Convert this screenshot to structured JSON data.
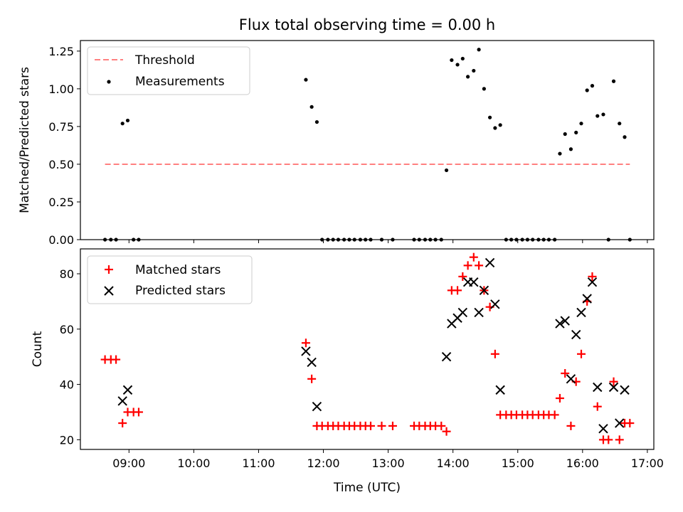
{
  "figure": {
    "title": "Flux total observing time = 0.00 h",
    "xlabel": "Time (UTC)"
  },
  "colors": {
    "threshold": "#ff8080",
    "measurements": "#000000",
    "matched": "#ff0000",
    "predicted": "#000000"
  },
  "chart_data": [
    {
      "type": "scatter",
      "title": "Flux total observing time = 0.00 h",
      "ylabel": "Matched/Predicted stars",
      "xlabel": "",
      "x_unit": "hours UTC",
      "xlim": [
        8.25,
        17.1
      ],
      "ylim": [
        0,
        1.32
      ],
      "yticks": [
        0.0,
        0.25,
        0.5,
        0.75,
        1.0,
        1.25
      ],
      "ytick_labels": [
        "0.00",
        "0.25",
        "0.50",
        "0.75",
        "1.00",
        "1.25"
      ],
      "legend": {
        "placement": "top-left",
        "entries": [
          "Threshold",
          "Measurements"
        ]
      },
      "threshold": {
        "name": "Threshold",
        "y": 0.5,
        "x": [
          8.63,
          16.73
        ]
      },
      "series": [
        {
          "name": "Measurements",
          "marker": "dot",
          "points": [
            [
              8.63,
              0
            ],
            [
              8.72,
              0
            ],
            [
              8.8,
              0
            ],
            [
              8.9,
              0.77
            ],
            [
              8.98,
              0.79
            ],
            [
              9.07,
              0
            ],
            [
              9.15,
              0
            ],
            [
              11.73,
              1.06
            ],
            [
              11.82,
              0.88
            ],
            [
              11.9,
              0.78
            ],
            [
              11.98,
              0
            ],
            [
              12.07,
              0
            ],
            [
              12.15,
              0
            ],
            [
              12.23,
              0
            ],
            [
              12.32,
              0
            ],
            [
              12.4,
              0
            ],
            [
              12.48,
              0
            ],
            [
              12.57,
              0
            ],
            [
              12.65,
              0
            ],
            [
              12.73,
              0
            ],
            [
              12.9,
              0
            ],
            [
              13.07,
              0
            ],
            [
              13.4,
              0
            ],
            [
              13.48,
              0
            ],
            [
              13.57,
              0
            ],
            [
              13.65,
              0
            ],
            [
              13.73,
              0
            ],
            [
              13.82,
              0
            ],
            [
              13.9,
              0.46
            ],
            [
              13.98,
              1.19
            ],
            [
              14.07,
              1.16
            ],
            [
              14.15,
              1.2
            ],
            [
              14.23,
              1.08
            ],
            [
              14.32,
              1.12
            ],
            [
              14.4,
              1.26
            ],
            [
              14.48,
              1.0
            ],
            [
              14.57,
              0.81
            ],
            [
              14.65,
              0.74
            ],
            [
              14.73,
              0.76
            ],
            [
              14.82,
              0
            ],
            [
              14.9,
              0
            ],
            [
              14.98,
              0
            ],
            [
              15.07,
              0
            ],
            [
              15.15,
              0
            ],
            [
              15.23,
              0
            ],
            [
              15.32,
              0
            ],
            [
              15.4,
              0
            ],
            [
              15.48,
              0
            ],
            [
              15.57,
              0
            ],
            [
              15.65,
              0.57
            ],
            [
              15.73,
              0.7
            ],
            [
              15.82,
              0.6
            ],
            [
              15.9,
              0.71
            ],
            [
              15.98,
              0.77
            ],
            [
              16.07,
              0.99
            ],
            [
              16.15,
              1.02
            ],
            [
              16.23,
              0.82
            ],
            [
              16.32,
              0.83
            ],
            [
              16.4,
              0
            ],
            [
              16.48,
              1.05
            ],
            [
              16.57,
              0.77
            ],
            [
              16.65,
              0.68
            ],
            [
              16.73,
              0
            ]
          ]
        }
      ]
    },
    {
      "type": "scatter",
      "title": "",
      "ylabel": "Count",
      "xlabel": "Time (UTC)",
      "x_unit": "hours UTC",
      "xlim": [
        8.25,
        17.1
      ],
      "ylim": [
        16.5,
        89
      ],
      "yticks": [
        20,
        40,
        60,
        80
      ],
      "ytick_labels": [
        "20",
        "40",
        "60",
        "80"
      ],
      "xticks": [
        9,
        10,
        11,
        12,
        13,
        14,
        15,
        16,
        17
      ],
      "xtick_labels": [
        "09:00",
        "10:00",
        "11:00",
        "12:00",
        "13:00",
        "14:00",
        "15:00",
        "16:00",
        "17:00"
      ],
      "legend": {
        "placement": "top-left",
        "entries": [
          "Matched stars",
          "Predicted stars"
        ]
      },
      "series": [
        {
          "name": "Matched stars",
          "marker": "plus",
          "points": [
            [
              8.63,
              49
            ],
            [
              8.72,
              49
            ],
            [
              8.8,
              49
            ],
            [
              8.9,
              26
            ],
            [
              8.98,
              30
            ],
            [
              9.07,
              30
            ],
            [
              9.15,
              30
            ],
            [
              11.73,
              55
            ],
            [
              11.82,
              42
            ],
            [
              11.9,
              25
            ],
            [
              11.98,
              25
            ],
            [
              12.07,
              25
            ],
            [
              12.15,
              25
            ],
            [
              12.23,
              25
            ],
            [
              12.32,
              25
            ],
            [
              12.4,
              25
            ],
            [
              12.48,
              25
            ],
            [
              12.57,
              25
            ],
            [
              12.65,
              25
            ],
            [
              12.73,
              25
            ],
            [
              12.9,
              25
            ],
            [
              13.07,
              25
            ],
            [
              13.4,
              25
            ],
            [
              13.48,
              25
            ],
            [
              13.57,
              25
            ],
            [
              13.65,
              25
            ],
            [
              13.73,
              25
            ],
            [
              13.82,
              25
            ],
            [
              13.9,
              23
            ],
            [
              13.98,
              74
            ],
            [
              14.07,
              74
            ],
            [
              14.15,
              79
            ],
            [
              14.23,
              83
            ],
            [
              14.32,
              86
            ],
            [
              14.4,
              83
            ],
            [
              14.48,
              74
            ],
            [
              14.57,
              68
            ],
            [
              14.65,
              51
            ],
            [
              14.73,
              29
            ],
            [
              14.82,
              29
            ],
            [
              14.9,
              29
            ],
            [
              14.98,
              29
            ],
            [
              15.07,
              29
            ],
            [
              15.15,
              29
            ],
            [
              15.23,
              29
            ],
            [
              15.32,
              29
            ],
            [
              15.4,
              29
            ],
            [
              15.48,
              29
            ],
            [
              15.57,
              29
            ],
            [
              15.65,
              35
            ],
            [
              15.73,
              44
            ],
            [
              15.82,
              25
            ],
            [
              15.9,
              41
            ],
            [
              15.98,
              51
            ],
            [
              16.07,
              70
            ],
            [
              16.15,
              79
            ],
            [
              16.23,
              32
            ],
            [
              16.32,
              20
            ],
            [
              16.4,
              20
            ],
            [
              16.48,
              41
            ],
            [
              16.57,
              20
            ],
            [
              16.65,
              26
            ],
            [
              16.73,
              26
            ]
          ]
        },
        {
          "name": "Predicted stars",
          "marker": "x",
          "points": [
            [
              8.9,
              34
            ],
            [
              8.98,
              38
            ],
            [
              11.73,
              52
            ],
            [
              11.82,
              48
            ],
            [
              11.9,
              32
            ],
            [
              13.9,
              50
            ],
            [
              13.98,
              62
            ],
            [
              14.07,
              64
            ],
            [
              14.15,
              66
            ],
            [
              14.23,
              77
            ],
            [
              14.32,
              77
            ],
            [
              14.4,
              66
            ],
            [
              14.48,
              74
            ],
            [
              14.57,
              84
            ],
            [
              14.65,
              69
            ],
            [
              14.73,
              38
            ],
            [
              15.65,
              62
            ],
            [
              15.73,
              63
            ],
            [
              15.82,
              42
            ],
            [
              15.9,
              58
            ],
            [
              15.98,
              66
            ],
            [
              16.07,
              71
            ],
            [
              16.15,
              77
            ],
            [
              16.23,
              39
            ],
            [
              16.32,
              24
            ],
            [
              16.48,
              39
            ],
            [
              16.57,
              26
            ],
            [
              16.65,
              38
            ]
          ]
        }
      ]
    }
  ]
}
